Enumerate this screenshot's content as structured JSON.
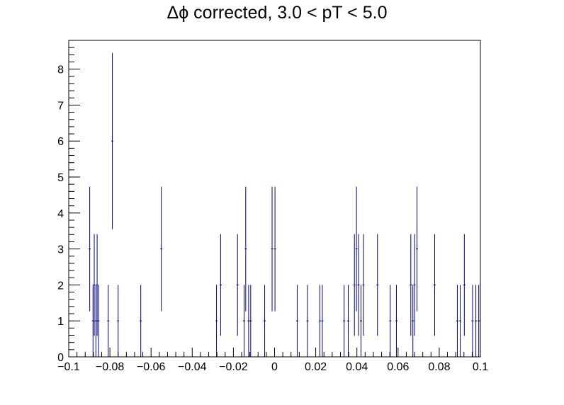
{
  "chart_data": {
    "type": "scatter",
    "title": "Δϕ corrected, 3.0 < pT < 5.0",
    "xlabel": "",
    "ylabel": "",
    "xlim": [
      -0.1,
      0.1
    ],
    "ylim": [
      0,
      8.8
    ],
    "x_ticks": [
      -0.1,
      -0.08,
      -0.06,
      -0.04,
      -0.02,
      0,
      0.02,
      0.04,
      0.06,
      0.08,
      0.1
    ],
    "x_tick_labels": [
      "−0.1",
      "−0.08",
      "−0.06",
      "−0.04",
      "−0.02",
      "0",
      "0.02",
      "0.04",
      "0.06",
      "0.08",
      "0.1"
    ],
    "y_ticks": [
      0,
      1,
      2,
      3,
      4,
      5,
      6,
      7,
      8
    ],
    "y_tick_labels": [
      "0",
      "1",
      "2",
      "3",
      "4",
      "5",
      "6",
      "7",
      "8"
    ],
    "grid": false,
    "legend": "none",
    "series": [
      {
        "color": "#000080",
        "points": [
          {
            "x": -0.0898,
            "y": 3
          },
          {
            "x": -0.0882,
            "y": 1
          },
          {
            "x": -0.0876,
            "y": 2
          },
          {
            "x": -0.0868,
            "y": 1
          },
          {
            "x": -0.0862,
            "y": 2
          },
          {
            "x": -0.0855,
            "y": 1
          },
          {
            "x": -0.0808,
            "y": 1
          },
          {
            "x": -0.0788,
            "y": 6
          },
          {
            "x": -0.076,
            "y": 1
          },
          {
            "x": -0.065,
            "y": 1
          },
          {
            "x": -0.055,
            "y": 3
          },
          {
            "x": -0.0282,
            "y": 1
          },
          {
            "x": -0.0262,
            "y": 2
          },
          {
            "x": -0.018,
            "y": 2
          },
          {
            "x": -0.0148,
            "y": 1
          },
          {
            "x": -0.014,
            "y": 3
          },
          {
            "x": -0.0126,
            "y": 1
          },
          {
            "x": -0.0116,
            "y": 1
          },
          {
            "x": -0.0048,
            "y": 1
          },
          {
            "x": -0.0012,
            "y": 3
          },
          {
            "x": 0.0002,
            "y": 3
          },
          {
            "x": 0.011,
            "y": 1
          },
          {
            "x": 0.016,
            "y": 1
          },
          {
            "x": 0.022,
            "y": 1
          },
          {
            "x": 0.0232,
            "y": 1
          },
          {
            "x": 0.0338,
            "y": 1
          },
          {
            "x": 0.0358,
            "y": 1
          },
          {
            "x": 0.0388,
            "y": 2
          },
          {
            "x": 0.0398,
            "y": 3
          },
          {
            "x": 0.0408,
            "y": 2
          },
          {
            "x": 0.042,
            "y": 1
          },
          {
            "x": 0.0432,
            "y": 2
          },
          {
            "x": 0.05,
            "y": 2
          },
          {
            "x": 0.0562,
            "y": 1
          },
          {
            "x": 0.0592,
            "y": 1
          },
          {
            "x": 0.0662,
            "y": 2
          },
          {
            "x": 0.0672,
            "y": 1
          },
          {
            "x": 0.068,
            "y": 2
          },
          {
            "x": 0.0692,
            "y": 3
          },
          {
            "x": 0.0778,
            "y": 2
          },
          {
            "x": 0.0888,
            "y": 1
          },
          {
            "x": 0.0902,
            "y": 1
          },
          {
            "x": 0.0922,
            "y": 2
          },
          {
            "x": 0.0962,
            "y": 1
          },
          {
            "x": 0.0978,
            "y": 1
          },
          {
            "x": 0.0992,
            "y": 1
          }
        ]
      }
    ]
  }
}
